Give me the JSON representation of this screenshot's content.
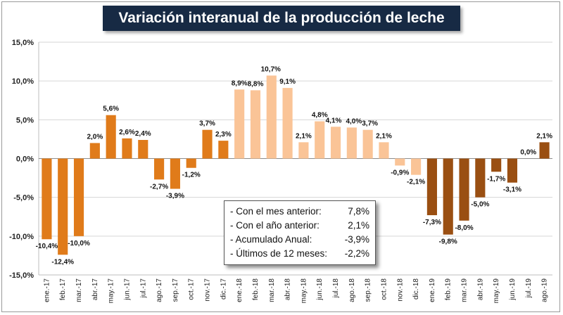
{
  "chart_data": {
    "type": "bar",
    "title": "Variación interanual de la producción de leche",
    "categories": [
      "ene.-17",
      "feb.-17",
      "mar.-17",
      "abr.-17",
      "may.-17",
      "jun.-17",
      "jul.-17",
      "ago.-17",
      "sep.-17",
      "oct.-17",
      "nov.-17",
      "dic.-17",
      "ene.-18",
      "feb.-18",
      "mar.-18",
      "abr.-18",
      "may.-18",
      "jun.-18",
      "jul.-18",
      "ago.-18",
      "sep.-18",
      "oct.-18",
      "nov.-18",
      "dic.-18",
      "ene.-19",
      "feb.-19",
      "mar.-19",
      "abr.-19",
      "may.-19",
      "jun.-19",
      "jul.-19",
      "ago.-19"
    ],
    "values": [
      -10.4,
      -12.4,
      -10.0,
      2.0,
      5.6,
      2.6,
      2.4,
      -2.7,
      -3.9,
      -1.2,
      3.7,
      2.3,
      8.9,
      8.8,
      10.7,
      9.1,
      2.1,
      4.8,
      4.1,
      4.0,
      3.7,
      2.1,
      -0.9,
      -2.1,
      -7.3,
      -9.8,
      -8.0,
      -5.0,
      -1.7,
      -3.1,
      0.0,
      2.1
    ],
    "value_labels": [
      "-10,4%",
      "-12,4%",
      "-10,0%",
      "2,0%",
      "5,6%",
      "2,6%",
      "2,4%",
      "-2,7%",
      "-3,9%",
      "-1,2%",
      "3,7%",
      "2,3%",
      "8,9%",
      "8,8%",
      "10,7%",
      "9,1%",
      "2,1%",
      "4,8%",
      "4,1%",
      "4,0%",
      "3,7%",
      "2,1%",
      "-0,9%",
      "-2,1%",
      "-7,3%",
      "-9,8%",
      "-8,0%",
      "-5,0%",
      "-1,7%",
      "-3,1%",
      "0,0%",
      "2,1%"
    ],
    "ylim": [
      -15,
      15
    ],
    "yticks": [
      -15,
      -10,
      -5,
      0,
      5,
      10,
      15
    ],
    "ytick_labels": [
      "-15,0%",
      "-10,0%",
      "-5,0%",
      "0,0%",
      "5,0%",
      "10,0%",
      "15,0%"
    ],
    "grid": true,
    "colors_by_year": {
      "2017": "#e07b1a",
      "2018": "#fac497",
      "2019": "#9a4f12"
    }
  },
  "stats_box": {
    "rows": [
      {
        "label": "- Con el mes anterior:",
        "value": "7,8%"
      },
      {
        "label": "- Con el año anterior:",
        "value": "2,1%"
      },
      {
        "label": "- Acumulado Anual:",
        "value": "-3,9%"
      },
      {
        "label": "- Últimos de 12 meses:",
        "value": "-2,2%"
      }
    ]
  }
}
